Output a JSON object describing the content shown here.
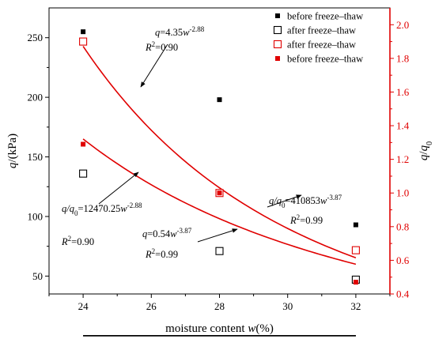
{
  "chart_data": {
    "type": "scatter",
    "xlabel": "moisture content w(%)",
    "ylabel_left": "q/(kPa)",
    "ylabel_right": "q/q0",
    "xlim": [
      23,
      33
    ],
    "ylim_left": [
      35,
      275
    ],
    "ylim_right": [
      0.4,
      2.1
    ],
    "x_ticks": [
      24,
      26,
      28,
      30,
      32
    ],
    "y_left_ticks": [
      50,
      100,
      150,
      200,
      250
    ],
    "y_right_ticks": [
      0.4,
      0.6,
      0.8,
      1.0,
      1.2,
      1.4,
      1.6,
      1.8,
      2.0
    ],
    "colors": {
      "black": "#000000",
      "red": "#e00000"
    },
    "legend_position": "top-right",
    "series": [
      {
        "name": "before freeze–thaw",
        "axis": "left",
        "color": "#000000",
        "marker": "filled-square",
        "x": [
          24,
          28,
          32
        ],
        "y": [
          255,
          198,
          93
        ]
      },
      {
        "name": "after freeze–thaw",
        "axis": "left",
        "color": "#000000",
        "marker": "open-square",
        "x": [
          24,
          28,
          32
        ],
        "y": [
          136,
          71,
          47
        ]
      },
      {
        "name": "after freeze–thaw",
        "axis": "right",
        "color": "#e00000",
        "marker": "open-square",
        "x": [
          24,
          28,
          32
        ],
        "y": [
          1.9,
          1.0,
          0.66
        ]
      },
      {
        "name": "before freeze–thaw",
        "axis": "right",
        "color": "#e00000",
        "marker": "filled-square",
        "x": [
          24,
          28,
          32
        ],
        "y": [
          1.29,
          1.0,
          0.47
        ]
      }
    ],
    "fits": [
      {
        "axis": "left",
        "color": "#000000",
        "coef": 4.35,
        "exp": -2.88,
        "offset": 0,
        "x_range": [
          24,
          32
        ]
      },
      {
        "axis": "left",
        "color": "#000000",
        "coef": 0.54,
        "exp": -3.87,
        "offset": 0,
        "x_range": [
          24,
          32
        ]
      },
      {
        "axis": "right",
        "color": "#e00000",
        "coef": 12470.25,
        "exp": -2.88,
        "offset": 0,
        "x_range": [
          24,
          32
        ]
      },
      {
        "axis": "right",
        "color": "#e00000",
        "coef": 410853,
        "exp": -3.87,
        "offset": 0,
        "x_range": [
          24,
          32
        ]
      }
    ],
    "annotations": [
      {
        "lines": [
          [
            "q",
            "=4.35",
            "w",
            "-2.88"
          ],
          [
            "R",
            "2",
            "=0.90"
          ]
        ]
      },
      {
        "lines": [
          [
            "q/q",
            "0",
            "=410853",
            "w",
            "-3.87"
          ],
          [
            "R",
            "2",
            "=0.99"
          ]
        ]
      },
      {
        "lines": [
          [
            "q/q",
            "0",
            "=12470.25",
            "w",
            "-2.88"
          ],
          [
            "R",
            "2",
            "=0.90"
          ]
        ]
      },
      {
        "lines": [
          [
            "q",
            "=0.54",
            "w",
            "-3.87"
          ],
          [
            "R",
            "2",
            "=0.99"
          ]
        ]
      }
    ]
  }
}
